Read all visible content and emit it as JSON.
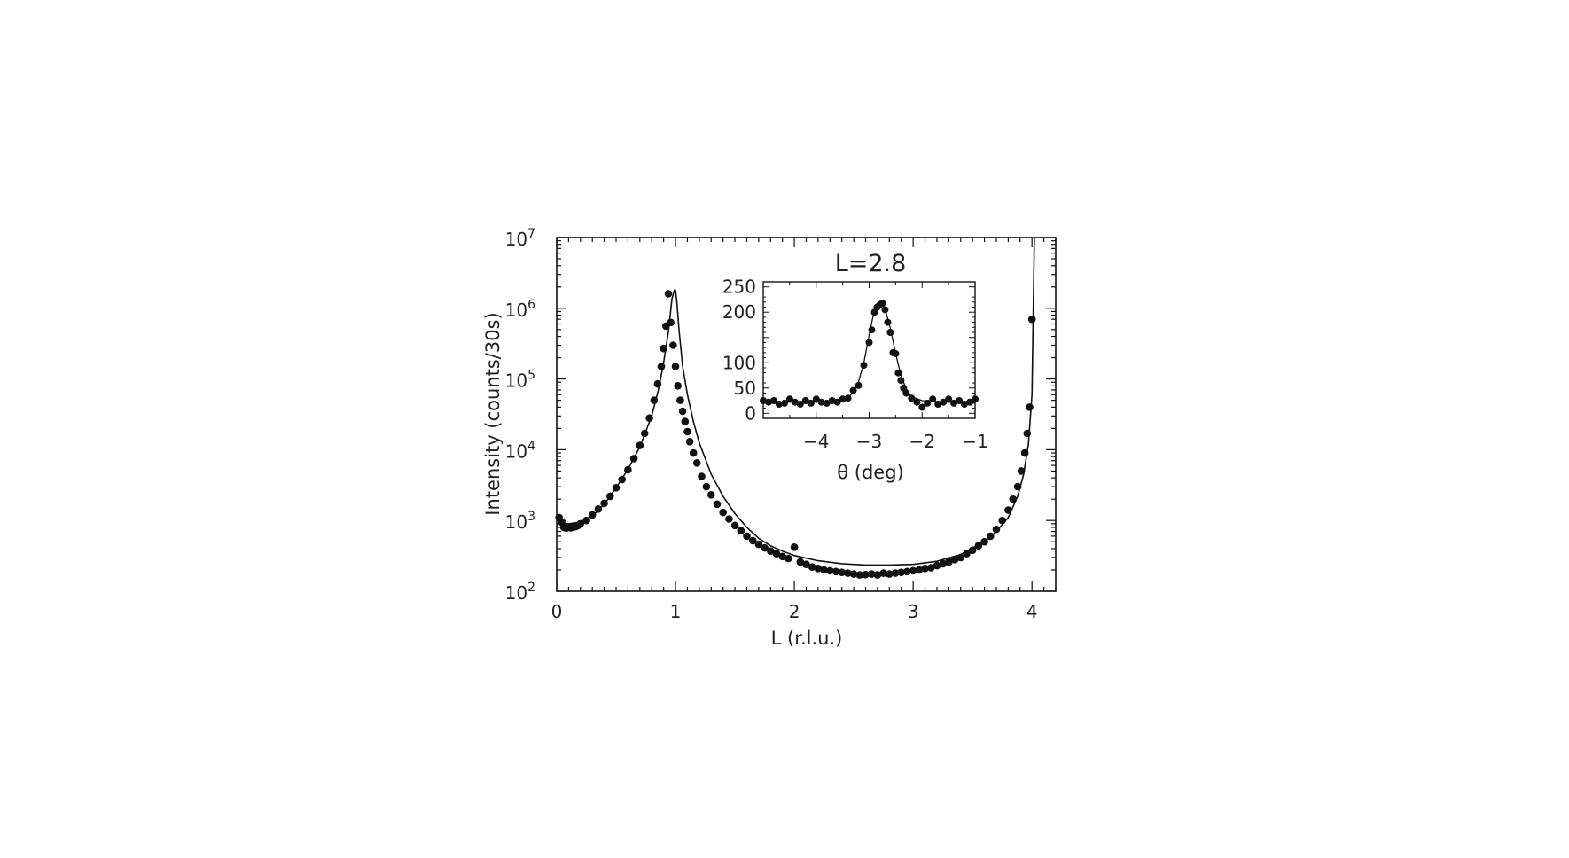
{
  "chart_data": [
    {
      "type": "scatter",
      "title": "",
      "xlabel": "L (r.l.u.)",
      "ylabel": "Intensity (counts/30s)",
      "xlim": [
        0,
        4.2
      ],
      "ylim": [
        100,
        10000000
      ],
      "yscale": "log",
      "x_ticks": [
        "0",
        "1",
        "2",
        "3",
        "4"
      ],
      "y_ticks": [
        {
          "base": "10",
          "exp": "2"
        },
        {
          "base": "10",
          "exp": "3"
        },
        {
          "base": "10",
          "exp": "4"
        },
        {
          "base": "10",
          "exp": "5"
        },
        {
          "base": "10",
          "exp": "6"
        },
        {
          "base": "10",
          "exp": "7"
        }
      ],
      "grid": false,
      "series": [
        {
          "style": "markers",
          "x": [
            0.02,
            0.04,
            0.06,
            0.08,
            0.1,
            0.12,
            0.14,
            0.16,
            0.18,
            0.2,
            0.25,
            0.3,
            0.35,
            0.4,
            0.45,
            0.5,
            0.55,
            0.6,
            0.65,
            0.7,
            0.74,
            0.78,
            0.82,
            0.85,
            0.88,
            0.9,
            0.92,
            0.94,
            0.96,
            0.98,
            1.0,
            1.02,
            1.04,
            1.06,
            1.08,
            1.1,
            1.12,
            1.15,
            1.18,
            1.22,
            1.26,
            1.3,
            1.35,
            1.4,
            1.45,
            1.5,
            1.55,
            1.6,
            1.65,
            1.7,
            1.75,
            1.8,
            1.85,
            1.9,
            1.95,
            2.0,
            2.05,
            2.1,
            2.15,
            2.2,
            2.25,
            2.3,
            2.35,
            2.4,
            2.45,
            2.5,
            2.55,
            2.6,
            2.65,
            2.7,
            2.75,
            2.8,
            2.85,
            2.9,
            2.95,
            3.0,
            3.05,
            3.1,
            3.15,
            3.2,
            3.25,
            3.3,
            3.35,
            3.4,
            3.45,
            3.5,
            3.55,
            3.6,
            3.65,
            3.7,
            3.75,
            3.8,
            3.84,
            3.88,
            3.91,
            3.94,
            3.96,
            3.98,
            4.0
          ],
          "y": [
            1100,
            950,
            800,
            780,
            800,
            790,
            810,
            820,
            850,
            900,
            1000,
            1200,
            1450,
            1750,
            2200,
            2900,
            3800,
            5200,
            7500,
            11500,
            17000,
            28000,
            50000,
            85000,
            150000,
            270000,
            560000,
            1600000,
            630000,
            300000,
            150000,
            80000,
            50000,
            35000,
            25000,
            18000,
            13000,
            9000,
            6500,
            4200,
            3000,
            2300,
            1700,
            1300,
            1050,
            850,
            720,
            600,
            520,
            460,
            410,
            370,
            340,
            310,
            290,
            420,
            260,
            240,
            220,
            210,
            200,
            195,
            190,
            185,
            180,
            175,
            170,
            172,
            175,
            170,
            180,
            175,
            180,
            185,
            190,
            195,
            200,
            210,
            215,
            230,
            245,
            260,
            280,
            300,
            340,
            380,
            440,
            500,
            600,
            750,
            1000,
            1400,
            2000,
            3000,
            5000,
            9000,
            17000,
            40000,
            700000
          ]
        },
        {
          "style": "line",
          "x": [
            0.02,
            0.1,
            0.2,
            0.3,
            0.4,
            0.5,
            0.6,
            0.7,
            0.8,
            0.86,
            0.9,
            0.94,
            0.97,
            0.99,
            1.0,
            1.01,
            1.03,
            1.06,
            1.1,
            1.15,
            1.2,
            1.3,
            1.4,
            1.5,
            1.6,
            1.7,
            1.8,
            1.9,
            2.0,
            2.2,
            2.4,
            2.6,
            2.8,
            3.0,
            3.2,
            3.4,
            3.6,
            3.7,
            3.8,
            3.88,
            3.93,
            3.97,
            4.0,
            4.02
          ],
          "y": [
            950,
            900,
            950,
            1150,
            1700,
            2900,
            5300,
            11000,
            30000,
            75000,
            170000,
            460000,
            1350000,
            1800000,
            1800000,
            1300000,
            480000,
            150000,
            60000,
            25000,
            12500,
            4500,
            2200,
            1250,
            800,
            560,
            440,
            370,
            320,
            270,
            245,
            235,
            235,
            240,
            265,
            330,
            500,
            700,
            1100,
            2200,
            4500,
            12000,
            60000,
            10000000
          ]
        }
      ]
    },
    {
      "type": "scatter",
      "title": "L=2.8",
      "xlabel": "θ (deg)",
      "ylabel": "",
      "xlim": [
        -5,
        -1
      ],
      "ylim": [
        -10,
        260
      ],
      "x_ticks": [
        "−4",
        "−3",
        "−2",
        "−1"
      ],
      "y_ticks": [
        "0",
        "50",
        "100",
        "200",
        "250"
      ],
      "grid": false,
      "series": [
        {
          "style": "markers",
          "x": [
            -5.0,
            -4.9,
            -4.8,
            -4.7,
            -4.6,
            -4.5,
            -4.4,
            -4.3,
            -4.2,
            -4.1,
            -4.0,
            -3.9,
            -3.8,
            -3.7,
            -3.6,
            -3.5,
            -3.4,
            -3.3,
            -3.2,
            -3.1,
            -3.0,
            -2.95,
            -2.9,
            -2.85,
            -2.8,
            -2.75,
            -2.7,
            -2.65,
            -2.6,
            -2.55,
            -2.5,
            -2.45,
            -2.4,
            -2.35,
            -2.3,
            -2.2,
            -2.1,
            -2.0,
            -1.9,
            -1.8,
            -1.7,
            -1.6,
            -1.5,
            -1.4,
            -1.3,
            -1.2,
            -1.1,
            -1.0
          ],
          "y": [
            25,
            22,
            25,
            18,
            20,
            28,
            22,
            18,
            25,
            20,
            28,
            22,
            20,
            25,
            22,
            28,
            30,
            45,
            55,
            95,
            140,
            165,
            200,
            210,
            215,
            218,
            205,
            180,
            160,
            120,
            118,
            80,
            65,
            50,
            40,
            30,
            22,
            12,
            20,
            28,
            18,
            22,
            28,
            20,
            25,
            18,
            22,
            28
          ]
        },
        {
          "style": "line",
          "x": [
            -5.0,
            -4.5,
            -4.0,
            -3.6,
            -3.4,
            -3.3,
            -3.2,
            -3.1,
            -3.0,
            -2.9,
            -2.8,
            -2.7,
            -2.6,
            -2.5,
            -2.4,
            -2.3,
            -2.2,
            -2.0,
            -1.5,
            -1.0
          ],
          "y": [
            22,
            22,
            22,
            24,
            30,
            42,
            62,
            100,
            155,
            205,
            220,
            208,
            168,
            118,
            75,
            48,
            33,
            25,
            22,
            22
          ]
        }
      ]
    }
  ]
}
